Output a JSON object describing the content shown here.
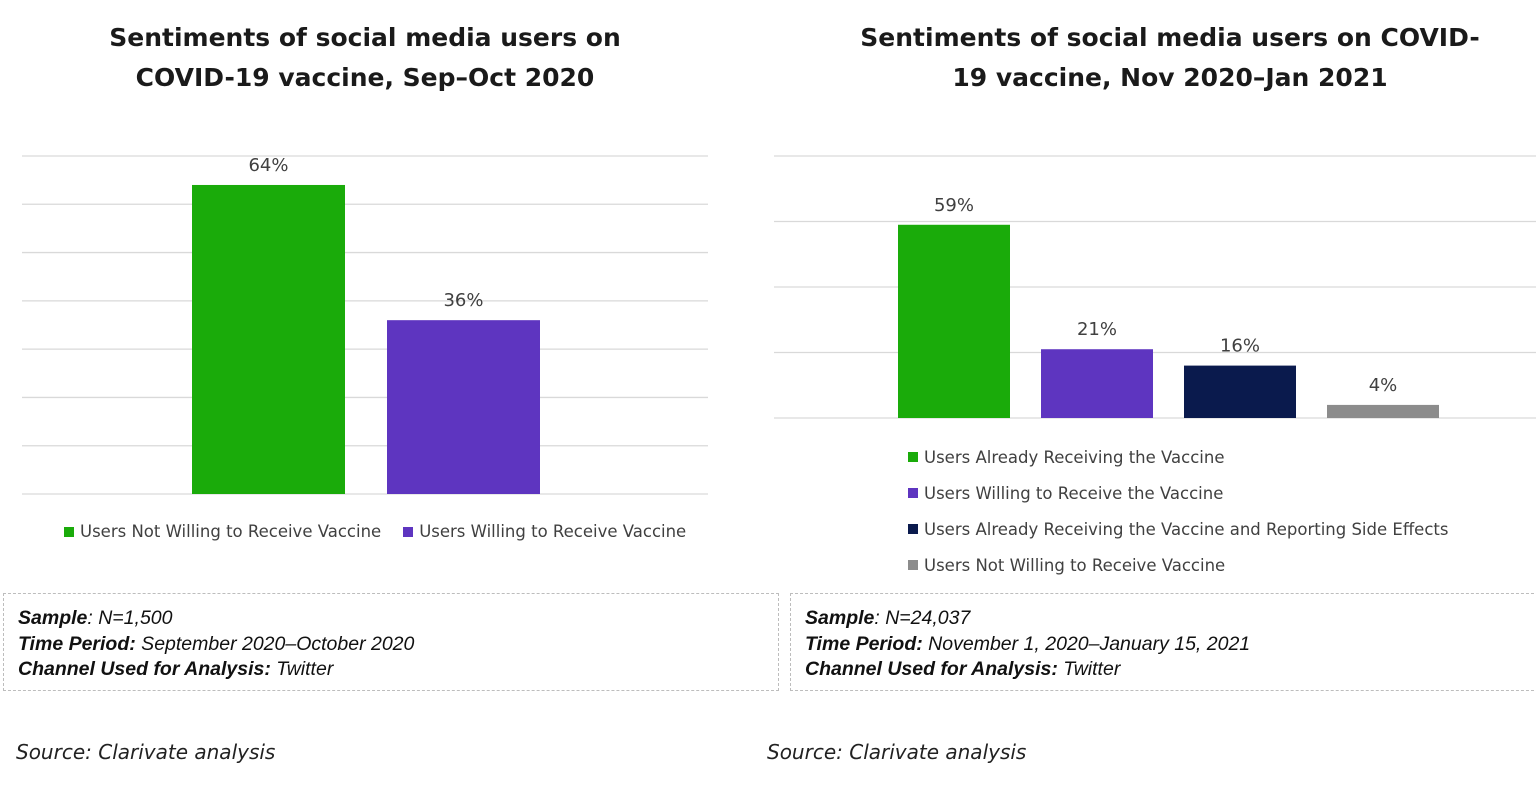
{
  "charts": [
    {
      "title": "Sentiments of social media users on COVID-19 vaccine, Sep–Oct 2020",
      "chart_data": {
        "type": "bar",
        "categories": [
          "Users Not Willing to Receive Vaccine",
          "Users Willing to Receive Vaccine"
        ],
        "values": [
          64,
          36
        ],
        "value_labels": [
          "64%",
          "36%"
        ],
        "colors": [
          "#1aab0a",
          "#5e35c0"
        ],
        "ylim": [
          0,
          70
        ],
        "grid": true,
        "legend": "bottom"
      },
      "info": {
        "sample_label": "Sample",
        "sample_value": ": N=1,500",
        "period_label": "Time Period:",
        "period_value": " September 2020–October 2020",
        "channel_label": "Channel Used for Analysis:",
        "channel_value": " Twitter"
      },
      "source": "Source: Clarivate analysis"
    },
    {
      "title": "Sentiments of social media users on COVID-19 vaccine, Nov 2020–Jan 2021",
      "chart_data": {
        "type": "bar",
        "categories": [
          "Users Already Receiving the Vaccine",
          "Users Willing to Receive the Vaccine",
          "Users Already Receiving the Vaccine and Reporting Side Effects",
          "Users Not Willing to Receive Vaccine"
        ],
        "values": [
          59,
          21,
          16,
          4
        ],
        "value_labels": [
          "59%",
          "21%",
          "16%",
          "4%"
        ],
        "colors": [
          "#1aab0a",
          "#5e35c0",
          "#0a1a4d",
          "#8c8c8c"
        ],
        "ylim": [
          0,
          80
        ],
        "grid": true,
        "legend": "bottom"
      },
      "info": {
        "sample_label": "Sample",
        "sample_value": ": N=24,037",
        "period_label": "Time Period:",
        "period_value": " November 1, 2020–January 15, 2021",
        "channel_label": "Channel Used for Analysis:",
        "channel_value": " Twitter"
      },
      "source": "Source: Clarivate analysis"
    }
  ]
}
